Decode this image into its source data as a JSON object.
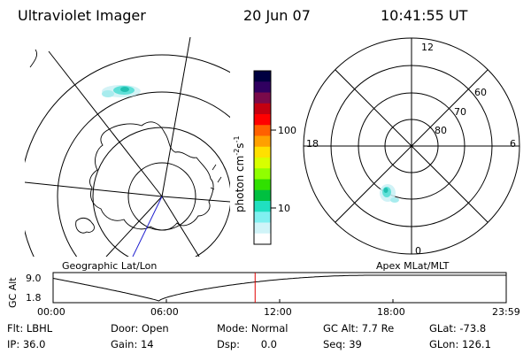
{
  "header": {
    "instrument": "Ultraviolet Imager",
    "date": "20 Jun 07",
    "time": "10:41:55 UT"
  },
  "maps": {
    "geographic_label": "Geographic Lat/Lon",
    "magnetic_label": "Apex MLat/MLT",
    "mlt_labels": [
      "12",
      "18",
      "6",
      "0"
    ],
    "mlat_labels": [
      "60",
      "70",
      "80"
    ]
  },
  "colorbar": {
    "title": "photon cm",
    "title_sup1": "-2",
    "title_mid": "s",
    "title_sup2": "-1",
    "tick_labels": [
      "100",
      "10"
    ],
    "scale": "log",
    "colors": [
      "#000040",
      "#300060",
      "#7a0a4a",
      "#c40010",
      "#ff0000",
      "#ff6000",
      "#ffa000",
      "#ffe000",
      "#d8ff00",
      "#90ff00",
      "#30e000",
      "#00c040",
      "#20e0c0",
      "#80f0f0",
      "#d0f4f8",
      "#ffffff"
    ]
  },
  "timeline": {
    "ylabel": "GC Alt",
    "yticks": [
      "9.0",
      "1.8"
    ],
    "xticks": [
      "00:00",
      "06:00",
      "12:00",
      "18:00",
      "23:59"
    ],
    "marker_hour": 10.7
  },
  "footer": {
    "rows": [
      [
        {
          "label": "Flt:",
          "value": "LBHL"
        },
        {
          "label": "Door:",
          "value": "Open"
        },
        {
          "label": "Mode:",
          "value": "Normal"
        },
        {
          "label": "GC Alt:",
          "value": "7.7 Re"
        },
        {
          "label": "GLat:",
          "value": "-73.8"
        }
      ],
      [
        {
          "label": "IP:",
          "value": "36.0"
        },
        {
          "label": "Gain:",
          "value": "14"
        },
        {
          "label": "Dsp:",
          "value": "0.0"
        },
        {
          "label": "Seq:",
          "value": "39"
        },
        {
          "label": "GLon:",
          "value": "126.1"
        }
      ]
    ]
  }
}
